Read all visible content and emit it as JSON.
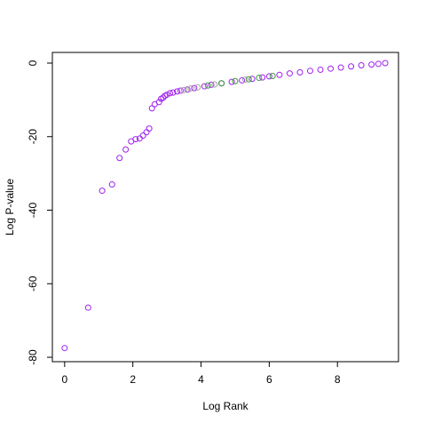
{
  "chart_data": {
    "type": "scatter",
    "x_label": "Log Rank",
    "y_label": "Log P-value",
    "xlim": [
      -0.36,
      9.79
    ],
    "ylim": [
      -81.2,
      2.9
    ],
    "xticks": [
      0,
      2,
      4,
      6,
      8
    ],
    "yticks": [
      -80,
      -60,
      -40,
      -20,
      0
    ],
    "series": [
      {
        "color": "#a020f0",
        "x": [
          0,
          0.69,
          1.1,
          1.39,
          1.61,
          1.79,
          1.95,
          2.08,
          2.2,
          2.3,
          2.4,
          2.48,
          2.56,
          2.64,
          2.77,
          2.83,
          2.89,
          2.94,
          3.0,
          3.09,
          3.18,
          3.3,
          3.4,
          3.6,
          3.8,
          4.1,
          4.3,
          4.6,
          4.9,
          5.2,
          5.5,
          5.8,
          6.0,
          6.3,
          6.6,
          6.9,
          7.2,
          7.5,
          7.8,
          8.1,
          8.4,
          8.7,
          9.0,
          9.2,
          9.4
        ],
        "values": [
          -77.5,
          -66.5,
          -34.7,
          -33,
          -25.8,
          -23.5,
          -21.3,
          -20.7,
          -20.5,
          -19.7,
          -18.8,
          -17.8,
          -12.3,
          -11.2,
          -10.6,
          -9.7,
          -9.4,
          -8.9,
          -8.6,
          -8.2,
          -8.0,
          -7.7,
          -7.5,
          -7.2,
          -6.8,
          -6.3,
          -5.9,
          -5.5,
          -5.1,
          -4.7,
          -4.3,
          -3.9,
          -3.6,
          -3.2,
          -2.8,
          -2.5,
          -2.1,
          -1.8,
          -1.5,
          -1.2,
          -0.9,
          -0.6,
          -0.4,
          -0.2,
          0
        ]
      },
      {
        "color": "#3a9a3a",
        "x": [
          4.2,
          4.6,
          5.0,
          5.4,
          5.7,
          6.1
        ],
        "values": [
          -6.1,
          -5.5,
          -4.9,
          -4.4,
          -4.0,
          -3.5
        ]
      },
      {
        "color": "#a0a0a0",
        "x": [
          3.5,
          3.7,
          3.9,
          4.4,
          5.3
        ],
        "values": [
          -7.3,
          -6.9,
          -6.6,
          -5.8,
          -4.5
        ]
      }
    ]
  }
}
